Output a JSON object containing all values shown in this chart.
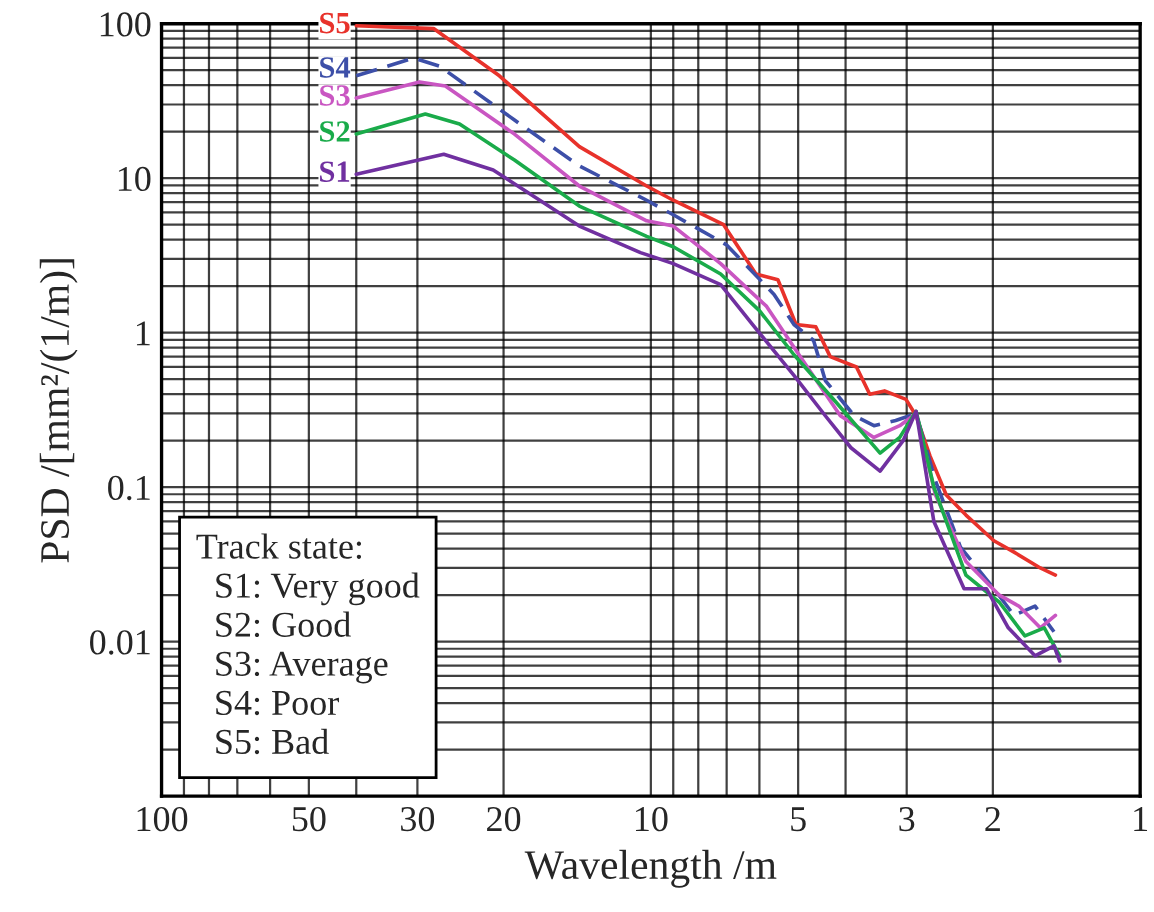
{
  "chart_data": {
    "type": "line",
    "xlabel": "Wavelength /m",
    "ylabel": "PSD /[mm²/(1/m)]",
    "log": "xy",
    "xlim": [
      100,
      1
    ],
    "ylim": [
      0.001,
      100
    ],
    "xticks": [
      100,
      50,
      30,
      20,
      10,
      5,
      3,
      2,
      1
    ],
    "yticks": [
      100,
      10,
      1,
      0.1,
      0.01
    ],
    "grid": true,
    "legend": false,
    "marker": "none",
    "annotations": [
      "Track state:\n  S1: Very good\n  S2: Good\n  S3: Average\n  S4: Poor\n  S5: Bad"
    ],
    "series": [
      {
        "name": "S5",
        "color": "#e8322b",
        "line_style": "solid",
        "x": [
          40,
          27.8,
          20.4,
          14,
          10.2,
          9.0,
          7.1,
          6.1,
          5.5,
          5.05,
          4.6,
          4.3,
          3.8,
          3.57,
          3.33,
          3.01,
          2.87,
          2.69,
          2.49,
          2.27,
          1.99,
          1.81,
          1.6,
          1.49
        ],
        "values": [
          97,
          93,
          46,
          16,
          8.9,
          7.2,
          5.0,
          2.4,
          2.2,
          1.13,
          1.09,
          0.7,
          0.6,
          0.4,
          0.42,
          0.37,
          0.29,
          0.16,
          0.089,
          0.066,
          0.045,
          0.038,
          0.03,
          0.027
        ]
      },
      {
        "name": "S4",
        "color": "#3d4fa8",
        "line_style": "dashed",
        "x": [
          40,
          30.5,
          27,
          19,
          14,
          10.2,
          9.0,
          7.0,
          5.6,
          5.1,
          4.65,
          4.4,
          3.84,
          3.5,
          3.16,
          2.87,
          2.62,
          2.33,
          1.99,
          1.81,
          1.64,
          1.5
        ],
        "values": [
          46,
          60,
          53,
          23.8,
          12,
          7.2,
          5.8,
          3.7,
          1.77,
          1.13,
          0.89,
          0.49,
          0.29,
          0.25,
          0.27,
          0.3,
          0.11,
          0.041,
          0.022,
          0.0148,
          0.017,
          0.0116
        ]
      },
      {
        "name": "S3",
        "color": "#c956c2",
        "line_style": "solid",
        "x": [
          40,
          29.7,
          26.3,
          19,
          14,
          10.2,
          9.0,
          7.2,
          5.8,
          4.98,
          4.1,
          3.5,
          3.1,
          2.87,
          2.62,
          2.27,
          1.94,
          1.77,
          1.6,
          1.49
        ],
        "values": [
          33,
          42,
          39.5,
          19.3,
          8.9,
          5.3,
          4.9,
          2.8,
          1.48,
          0.72,
          0.29,
          0.21,
          0.25,
          0.3,
          0.089,
          0.033,
          0.02,
          0.017,
          0.0123,
          0.0148
        ]
      },
      {
        "name": "S2",
        "color": "#1aab4a",
        "line_style": "solid",
        "x": [
          40,
          28.9,
          24.6,
          19,
          14,
          10.2,
          9.0,
          7.2,
          6.0,
          5.1,
          4.2,
          3.4,
          3.1,
          2.87,
          2.64,
          2.27,
          1.94,
          1.72,
          1.57,
          1.46
        ],
        "values": [
          19.3,
          26,
          22.4,
          13.1,
          6.6,
          4.2,
          3.6,
          2.4,
          1.39,
          0.72,
          0.36,
          0.166,
          0.21,
          0.31,
          0.1,
          0.027,
          0.018,
          0.0109,
          0.0123,
          0.0081
        ]
      },
      {
        "name": "S1",
        "color": "#7030a0",
        "line_style": "solid",
        "x": [
          40,
          26.5,
          21,
          14,
          10.5,
          9.0,
          7.2,
          6.2,
          5.1,
          4.4,
          3.9,
          3.4,
          3.05,
          2.87,
          2.64,
          2.29,
          2.06,
          1.86,
          1.64,
          1.5,
          1.46
        ],
        "values": [
          10.6,
          14.3,
          11.3,
          4.9,
          3.3,
          2.8,
          2.05,
          1.13,
          0.53,
          0.29,
          0.18,
          0.127,
          0.2,
          0.31,
          0.06,
          0.022,
          0.022,
          0.0123,
          0.0081,
          0.0094,
          0.0075
        ]
      }
    ]
  }
}
